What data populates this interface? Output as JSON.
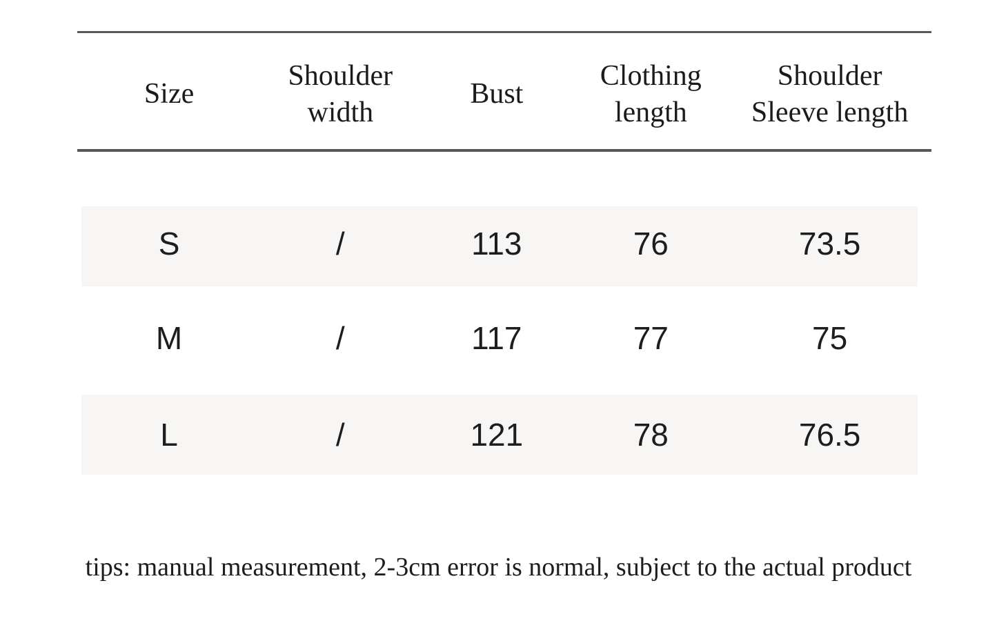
{
  "table": {
    "headers": [
      "Size",
      "Shoulder\nwidth",
      "Bust",
      "Clothing\nlength",
      "Shoulder\nSleeve length"
    ],
    "rows": [
      {
        "size": "S",
        "shoulder_width": "/",
        "bust": "113",
        "clothing_length": "76",
        "shoulder_sleeve_length": "73.5"
      },
      {
        "size": "M",
        "shoulder_width": "/",
        "bust": "117",
        "clothing_length": "77",
        "shoulder_sleeve_length": "75"
      },
      {
        "size": "L",
        "shoulder_width": "/",
        "bust": "121",
        "clothing_length": "78",
        "shoulder_sleeve_length": "76.5"
      }
    ]
  },
  "tips": "tips: manual measurement, 2-3cm error is normal, subject to the actual product",
  "colors": {
    "background": "#ffffff",
    "rule_line": "#58585a",
    "text": "#1c1c1c",
    "row_band": "#f7f6f5"
  }
}
